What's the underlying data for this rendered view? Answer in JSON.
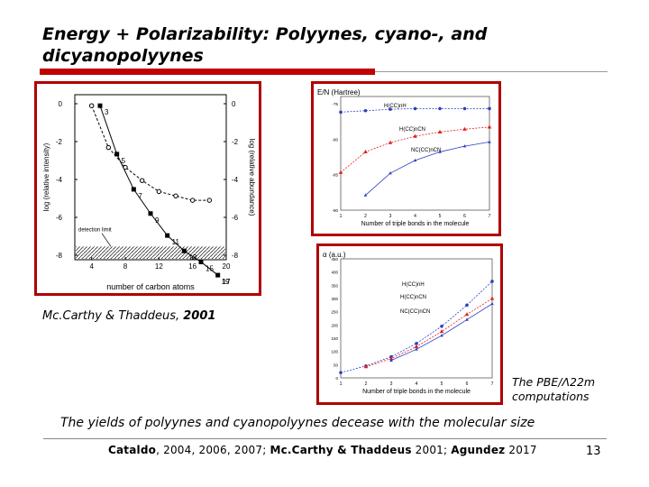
{
  "slide": {
    "title": "Energy + Polarizability: Polyynes, cyano-, and dicyanopolyynes",
    "caption_left_author": "Mc.Carthy & Thaddeus,",
    "caption_left_year": "2001",
    "caption_right_line1": "The PBE/Λ22m",
    "caption_right_line2": "computations",
    "caption_bottom": "The yields of polyynes and cyanopolyynes decease with the molecular size",
    "refs_a": "Cataldo",
    "refs_b": ", 2004, 2006, 2007;",
    "refs_c": "Mc.Carthy & Thaddeus",
    "refs_d": " 2001;",
    "refs_e": "Agundez",
    "refs_f": " 2017",
    "page_number": "13"
  },
  "chart_data": [
    {
      "type": "scatter",
      "xlabel": "number of carbon atoms",
      "ylabel_left": "log (relative intensity)",
      "ylabel_right": "log (relative abundance)",
      "xlim": [
        2,
        20
      ],
      "ylim": [
        -7,
        0.5
      ],
      "x_ticks": [
        "4",
        "8",
        "12",
        "16",
        "20"
      ],
      "y_ticks_left": [
        "0",
        "-2",
        "-4",
        "-6",
        "-8"
      ],
      "y_ticks_right": [
        "0",
        "-2",
        "-4",
        "-6",
        "-8"
      ],
      "annotation": "detection limit",
      "series": [
        {
          "x": [
            5,
            7,
            9,
            11,
            13,
            15,
            17,
            19
          ],
          "values": [
            0,
            -2.2,
            -3.8,
            -4.9,
            -5.9,
            -6.6,
            -7.1,
            -7.7
          ],
          "point_labels": [
            "3",
            "5",
            "7",
            "9",
            "11",
            "13",
            "15",
            "17"
          ]
        },
        {
          "x": [
            4,
            6,
            8,
            10,
            12,
            14,
            16,
            18
          ],
          "values": [
            0,
            -1.9,
            -2.8,
            -3.4,
            -3.9,
            -4.1,
            -4.3,
            -4.3
          ]
        }
      ],
      "extra_labels": [
        "19"
      ]
    },
    {
      "type": "line",
      "title": "E/N (Hartree)",
      "xlabel": "Number of triple bonds in the molecule",
      "x": [
        1,
        2,
        3,
        4,
        5,
        6,
        7
      ],
      "y_ticks": [
        "-75",
        "-80",
        "-85",
        "-90"
      ],
      "x_ticks": [
        "1",
        "2",
        "3",
        "4",
        "5",
        "6",
        "7"
      ],
      "series": [
        {
          "name": "H(CC)nH",
          "values": [
            -76.2,
            -76.0,
            -75.8,
            -75.7,
            -75.7,
            -75.7,
            -75.7
          ],
          "color": "#2c3fbf"
        },
        {
          "name": "H(CC)nCN",
          "values": [
            -84.7,
            -81.8,
            -80.5,
            -79.6,
            -79.0,
            -78.6,
            -78.3
          ],
          "color": "#e02020"
        },
        {
          "name": "NC(CC)nCN",
          "values": [
            null,
            -87.9,
            -84.8,
            -83.0,
            -81.8,
            -81.0,
            -80.4
          ],
          "color": "#2c3fbf"
        }
      ]
    },
    {
      "type": "line",
      "title": "α (a.u.)",
      "xlabel": "Number of triple bonds in the molecule",
      "x": [
        1,
        2,
        3,
        4,
        5,
        6,
        7
      ],
      "ylim": [
        0,
        450
      ],
      "y_ticks": [
        "0",
        "50",
        "100",
        "150",
        "200",
        "250",
        "300",
        "350",
        "400",
        "450"
      ],
      "x_ticks": [
        "1",
        "2",
        "3",
        "4",
        "5",
        "6",
        "7"
      ],
      "series": [
        {
          "name": "H(CC)nH",
          "values": [
            20,
            45,
            80,
            130,
            195,
            275,
            365
          ],
          "color": "#2c3fbf"
        },
        {
          "name": "H(CC)nCN",
          "values": [
            null,
            42,
            73,
            118,
            175,
            240,
            300
          ],
          "color": "#e02020"
        },
        {
          "name": "NC(CC)nCN",
          "values": [
            null,
            null,
            66,
            108,
            160,
            220,
            280
          ],
          "color": "#2c3fbf"
        }
      ]
    }
  ]
}
